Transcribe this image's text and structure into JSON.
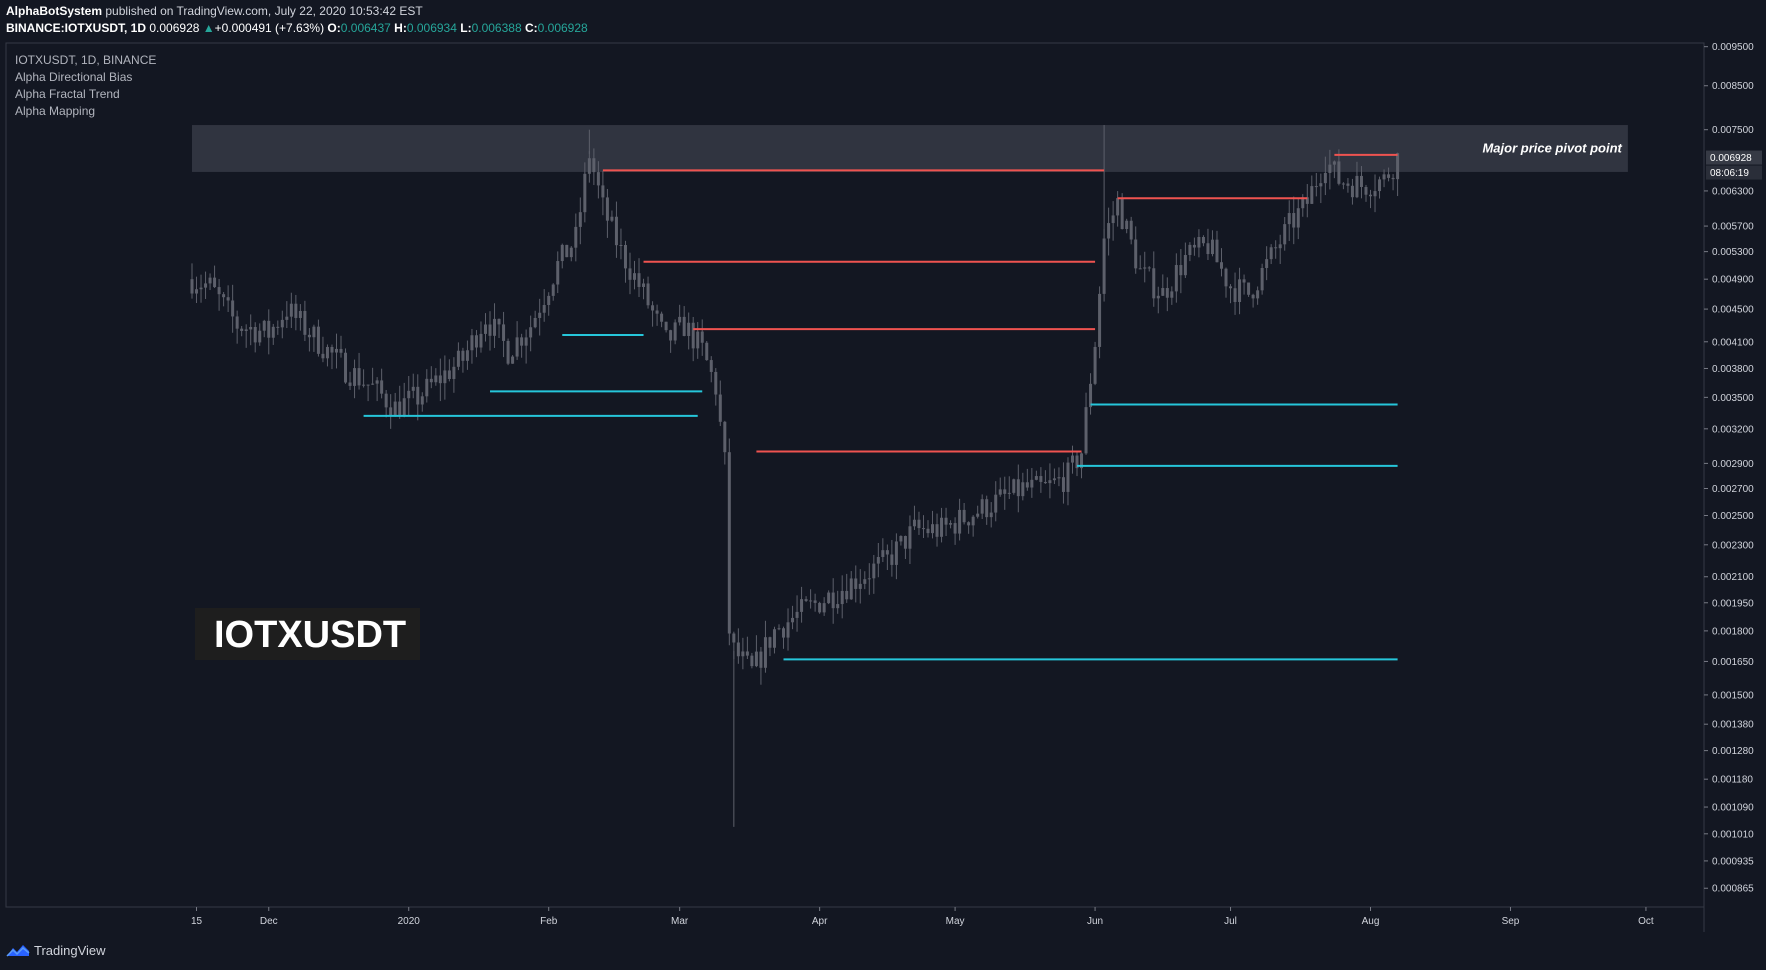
{
  "header": {
    "publisher": "AlphaBotSystem",
    "published_text": "published on TradingView.com, July 22, 2020 10:53:42 EST",
    "symbol_line": "BINANCE:IOTXUSDT, 1D",
    "last_price": "0.006928",
    "change_arrow": "▲",
    "change": "+0.000491 (+7.63%)",
    "ohlc": [
      {
        "label": "O:",
        "value": "0.006437"
      },
      {
        "label": "H:",
        "value": "0.006934"
      },
      {
        "label": "L:",
        "value": "0.006388"
      },
      {
        "label": "C:",
        "value": "0.006928"
      }
    ]
  },
  "legend": {
    "items": [
      "IOTXUSDT, 1D, BINANCE",
      "Alpha Directional Bias",
      "Alpha Fractal Trend",
      "Alpha Mapping"
    ]
  },
  "watermark": "IOTXUSDT",
  "zone_label": "Major price pivot point",
  "price_tag": "0.006928",
  "countdown_tag": "08:06:19",
  "footer": {
    "brand": "TradingView"
  },
  "colors": {
    "background": "#131722",
    "candle": "#5d606b",
    "resistance": "#ef5350",
    "support": "#26c6da",
    "zone": "#363a45"
  },
  "chart_data": {
    "type": "candlestick",
    "symbol": "IOTXUSDT",
    "timeframe": "1D",
    "exchange": "BINANCE",
    "y_scale": "log",
    "ylim": [
      0.00082,
      0.0096
    ],
    "y_ticks": [
      0.0095,
      0.0085,
      0.0075,
      0.0063,
      0.0057,
      0.0053,
      0.0049,
      0.0045,
      0.0041,
      0.0038,
      0.0035,
      0.0032,
      0.0029,
      0.0027,
      0.0025,
      0.0023,
      0.0021,
      0.00195,
      0.0018,
      0.00165,
      0.0015,
      0.00138,
      0.00128,
      0.00118,
      0.00109,
      0.00101,
      0.000935,
      0.000865
    ],
    "y_tick_labels": [
      "0.009500",
      "0.008500",
      "0.007500",
      "0.006300",
      "0.005700",
      "0.005300",
      "0.004900",
      "0.004500",
      "0.004100",
      "0.003800",
      "0.003500",
      "0.003200",
      "0.002900",
      "0.002700",
      "0.002500",
      "0.002300",
      "0.002100",
      "0.001950",
      "0.001800",
      "0.001650",
      "0.001500",
      "0.001380",
      "0.001280",
      "0.001180",
      "0.001090",
      "0.001010",
      "0.000935",
      "0.000865"
    ],
    "x_ticks": [
      {
        "label": "15",
        "date": "2019-11-15"
      },
      {
        "label": "Dec",
        "date": "2019-12-01"
      },
      {
        "label": "2020",
        "date": "2020-01-01"
      },
      {
        "label": "Feb",
        "date": "2020-02-01"
      },
      {
        "label": "Mar",
        "date": "2020-03-01"
      },
      {
        "label": "Apr",
        "date": "2020-04-01"
      },
      {
        "label": "May",
        "date": "2020-05-01"
      },
      {
        "label": "Jun",
        "date": "2020-06-01"
      },
      {
        "label": "Jul",
        "date": "2020-07-01"
      },
      {
        "label": "Aug",
        "date": "2020-08-01"
      },
      {
        "label": "Sep",
        "date": "2020-09-01"
      },
      {
        "label": "Oct",
        "date": "2020-10-01"
      }
    ],
    "x_range": [
      "2019-11-14",
      "2020-10-05"
    ],
    "close_path": [
      [
        "2019-11-14",
        0.0049
      ],
      [
        "2019-11-18",
        0.0048
      ],
      [
        "2019-11-24",
        0.0043
      ],
      [
        "2019-12-01",
        0.0042
      ],
      [
        "2019-12-05",
        0.0045
      ],
      [
        "2019-12-12",
        0.0041
      ],
      [
        "2019-12-18",
        0.0038
      ],
      [
        "2019-12-24",
        0.0036
      ],
      [
        "2019-12-29",
        0.0034
      ],
      [
        "2020-01-03",
        0.0035
      ],
      [
        "2020-01-08",
        0.0037
      ],
      [
        "2020-01-13",
        0.0039
      ],
      [
        "2020-01-18",
        0.0044
      ],
      [
        "2020-01-23",
        0.004
      ],
      [
        "2020-01-28",
        0.0043
      ],
      [
        "2020-02-03",
        0.0051
      ],
      [
        "2020-02-07",
        0.0055
      ],
      [
        "2020-02-10",
        0.007
      ],
      [
        "2020-02-13",
        0.006
      ],
      [
        "2020-02-17",
        0.0053
      ],
      [
        "2020-02-22",
        0.0047
      ],
      [
        "2020-02-27",
        0.0041
      ],
      [
        "2020-03-02",
        0.0043
      ],
      [
        "2020-03-06",
        0.004
      ],
      [
        "2020-03-09",
        0.0036
      ],
      [
        "2020-03-11",
        0.0029
      ],
      [
        "2020-03-12",
        0.0018
      ],
      [
        "2020-03-13",
        0.0017
      ],
      [
        "2020-03-17",
        0.0016
      ],
      [
        "2020-03-22",
        0.0018
      ],
      [
        "2020-03-28",
        0.0019
      ],
      [
        "2020-04-04",
        0.002
      ],
      [
        "2020-04-10",
        0.0021
      ],
      [
        "2020-04-16",
        0.0022
      ],
      [
        "2020-04-22",
        0.0024
      ],
      [
        "2020-04-28",
        0.0024
      ],
      [
        "2020-05-04",
        0.0025
      ],
      [
        "2020-05-10",
        0.0026
      ],
      [
        "2020-05-16",
        0.0027
      ],
      [
        "2020-05-21",
        0.0027
      ],
      [
        "2020-05-26",
        0.0028
      ],
      [
        "2020-05-29",
        0.003
      ],
      [
        "2020-06-01",
        0.0041
      ],
      [
        "2020-06-03",
        0.0055
      ],
      [
        "2020-06-06",
        0.0061
      ],
      [
        "2020-06-11",
        0.005
      ],
      [
        "2020-06-16",
        0.0047
      ],
      [
        "2020-06-21",
        0.0052
      ],
      [
        "2020-06-26",
        0.0054
      ],
      [
        "2020-07-01",
        0.0048
      ],
      [
        "2020-07-05",
        0.0047
      ],
      [
        "2020-07-09",
        0.0051
      ],
      [
        "2020-07-14",
        0.0057
      ],
      [
        "2020-07-18",
        0.0061
      ],
      [
        "2020-07-22",
        0.0069
      ],
      [
        "2020-07-25",
        0.0065
      ],
      [
        "2020-07-30",
        0.0064
      ],
      [
        "2020-08-04",
        0.0065
      ],
      [
        "2020-08-07",
        0.006928
      ]
    ],
    "spikes": [
      {
        "date": "2020-02-10",
        "high": 0.0075
      },
      {
        "date": "2020-03-13",
        "low": 0.00103
      },
      {
        "date": "2020-06-03",
        "high": 0.0076
      }
    ],
    "zone": {
      "label": "Major price pivot point",
      "from": "2019-11-14",
      "to": "2020-09-27",
      "low": 0.00665,
      "high": 0.0076
    },
    "resistance_levels": [
      {
        "from": "2020-02-13",
        "to": "2020-06-03",
        "price": 0.00668
      },
      {
        "from": "2020-02-22",
        "to": "2020-06-01",
        "price": 0.00515
      },
      {
        "from": "2020-03-04",
        "to": "2020-06-01",
        "price": 0.00425
      },
      {
        "from": "2020-03-18",
        "to": "2020-05-29",
        "price": 0.003
      },
      {
        "from": "2020-06-06",
        "to": "2020-07-18",
        "price": 0.00617
      },
      {
        "from": "2020-07-24",
        "to": "2020-08-07",
        "price": 0.00698
      }
    ],
    "support_levels": [
      {
        "from": "2019-12-22",
        "to": "2020-03-05",
        "price": 0.00332
      },
      {
        "from": "2020-01-19",
        "to": "2020-03-06",
        "price": 0.00356
      },
      {
        "from": "2020-02-04",
        "to": "2020-02-22",
        "price": 0.00418
      },
      {
        "from": "2020-05-31",
        "to": "2020-08-07",
        "price": 0.00343
      },
      {
        "from": "2020-05-28",
        "to": "2020-08-07",
        "price": 0.00288
      },
      {
        "from": "2020-03-24",
        "to": "2020-08-07",
        "price": 0.00166
      }
    ]
  }
}
